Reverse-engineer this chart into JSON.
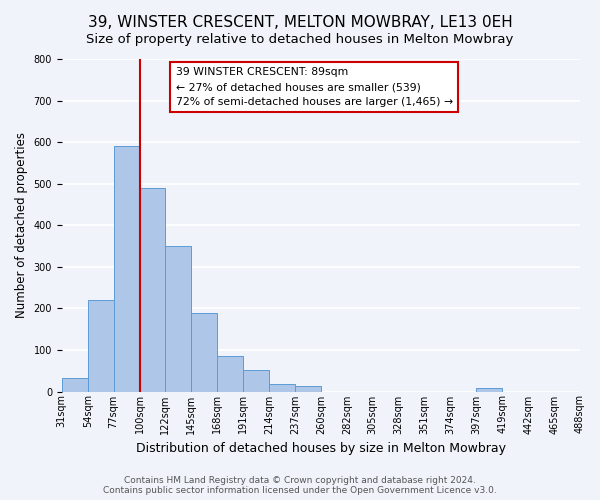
{
  "title": "39, WINSTER CRESCENT, MELTON MOWBRAY, LE13 0EH",
  "subtitle": "Size of property relative to detached houses in Melton Mowbray",
  "xlabel": "Distribution of detached houses by size in Melton Mowbray",
  "ylabel": "Number of detached properties",
  "bar_color": "#aec6e8",
  "bar_edge_color": "#5b9bd5",
  "vline_color": "#cc0000",
  "annotation_text": "39 WINSTER CRESCENT: 89sqm\n← 27% of detached houses are smaller (539)\n72% of semi-detached houses are larger (1,465) →",
  "annotation_box_color": "#ffffff",
  "annotation_box_edge": "#cc0000",
  "bar_heights": [
    33,
    220,
    590,
    490,
    350,
    188,
    85,
    52,
    18,
    14,
    0,
    0,
    0,
    0,
    0,
    0,
    8,
    0,
    0,
    0
  ],
  "ylim": [
    0,
    800
  ],
  "yticks": [
    0,
    100,
    200,
    300,
    400,
    500,
    600,
    700,
    800
  ],
  "xtick_labels": [
    "31sqm",
    "54sqm",
    "77sqm",
    "100sqm",
    "122sqm",
    "145sqm",
    "168sqm",
    "191sqm",
    "214sqm",
    "237sqm",
    "260sqm",
    "282sqm",
    "305sqm",
    "328sqm",
    "351sqm",
    "374sqm",
    "397sqm",
    "419sqm",
    "442sqm",
    "465sqm",
    "488sqm"
  ],
  "vline_bar_index": 3,
  "footer_line1": "Contains HM Land Registry data © Crown copyright and database right 2024.",
  "footer_line2": "Contains public sector information licensed under the Open Government Licence v3.0.",
  "background_color": "#f0f4fa",
  "grid_color": "#ffffff",
  "title_fontsize": 11,
  "subtitle_fontsize": 9.5,
  "xlabel_fontsize": 9,
  "ylabel_fontsize": 8.5,
  "tick_fontsize": 7,
  "footer_fontsize": 6.5
}
